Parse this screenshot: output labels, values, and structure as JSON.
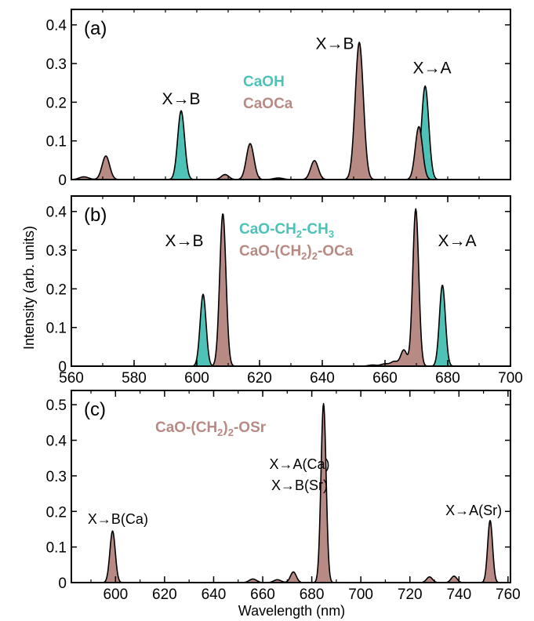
{
  "colors": {
    "teal": "#4ec2b6",
    "mauve": "#b88a84",
    "axis": "#000000"
  },
  "y_axis_label": "Intensity (arb. units)",
  "x_axis_label": "Wavelength (nm)",
  "chart_data": [
    {
      "type": "area",
      "panel_label": "(a)",
      "xlim": [
        560,
        700
      ],
      "ylim": [
        0,
        0.44
      ],
      "x_ticks": [],
      "y_ticks": [
        0,
        0.1,
        0.2,
        0.3,
        0.4
      ],
      "y_tick_labels": [
        "0",
        "0.1",
        "0.2",
        "0.3",
        "0.4"
      ],
      "legend": [
        {
          "text": "CaOH",
          "color": "teal"
        },
        {
          "text": "CaOCa",
          "color": "mauve"
        }
      ],
      "annotations": [
        {
          "text": "X→B",
          "x": 595,
          "y": 0.195
        },
        {
          "text": "X→B",
          "x": 644,
          "y": 0.338
        },
        {
          "text": "X→A",
          "x": 675,
          "y": 0.275
        }
      ],
      "series": [
        {
          "name": "CaOH",
          "color": "teal",
          "peaks": [
            [
              595,
              0.178,
              1.1
            ],
            [
              672.8,
              0.242,
              1.15
            ]
          ]
        },
        {
          "name": "CaOCa",
          "color": "mauve",
          "peaks": [
            [
              564,
              0.007,
              1.5
            ],
            [
              571,
              0.061,
              1.2
            ],
            [
              609,
              0.013,
              1.2
            ],
            [
              617,
              0.093,
              1.2
            ],
            [
              626,
              0.004,
              1.5
            ],
            [
              637.5,
              0.049,
              1.2
            ],
            [
              651.8,
              0.355,
              1.3
            ],
            [
              670.8,
              0.137,
              1.15
            ]
          ]
        }
      ]
    },
    {
      "type": "area",
      "panel_label": "(b)",
      "xlim": [
        560,
        700
      ],
      "ylim": [
        0,
        0.44
      ],
      "x_ticks": [
        560,
        580,
        600,
        620,
        640,
        660,
        680,
        700
      ],
      "x_tick_labels": [
        "560",
        "580",
        "600",
        "620",
        "640",
        "660",
        "680",
        "700"
      ],
      "y_ticks": [
        0,
        0.1,
        0.2,
        0.3,
        0.4
      ],
      "y_tick_labels": [
        "0",
        "0.1",
        "0.2",
        "0.3",
        "0.4"
      ],
      "legend": [
        {
          "text": "CaO-CH",
          "sub1": "2",
          "mid": "-CH",
          "sub2": "3",
          "tail": "",
          "color": "teal"
        },
        {
          "text": "CaO-(CH",
          "sub1": "2",
          "mid": ")",
          "sub2": "2",
          "tail": "-OCa",
          "color": "mauve"
        }
      ],
      "annotations": [
        {
          "text": "X→B",
          "x": 596,
          "y": 0.31
        },
        {
          "text": "X→A",
          "x": 683,
          "y": 0.31
        }
      ],
      "series": [
        {
          "name": "CaO-CH2-CH3",
          "color": "teal",
          "peaks": [
            [
              602,
              0.186,
              0.95
            ],
            [
              678.3,
              0.21,
              0.95
            ]
          ]
        },
        {
          "name": "CaO-(CH2)2-OCa",
          "color": "mauve",
          "peaks": [
            [
              608.3,
              0.395,
              1.0
            ],
            [
              656,
              0.003,
              1.3
            ],
            [
              660,
              0.006,
              1.3
            ],
            [
              663,
              0.012,
              1.1
            ],
            [
              666,
              0.042,
              1.0
            ],
            [
              669.8,
              0.407,
              0.95
            ]
          ]
        }
      ]
    },
    {
      "type": "area",
      "panel_label": "(c)",
      "xlim": [
        582,
        761
      ],
      "ylim": [
        0,
        0.54
      ],
      "x_ticks": [
        600,
        620,
        640,
        660,
        680,
        700,
        720,
        740,
        760
      ],
      "x_tick_labels": [
        "600",
        "620",
        "640",
        "660",
        "680",
        "700",
        "720",
        "740",
        "760"
      ],
      "y_ticks": [
        0,
        0.1,
        0.2,
        0.3,
        0.4,
        0.5
      ],
      "y_tick_labels": [
        "0",
        "0.1",
        "0.2",
        "0.3",
        "0.4",
        "0.5"
      ],
      "legend": [
        {
          "text": "CaO-(CH",
          "sub1": "2",
          "mid": ")",
          "sub2": "2",
          "tail": "-OSr",
          "color": "mauve"
        }
      ],
      "annotations": [
        {
          "text": "X→A(Ca)",
          "x": 675,
          "y": 0.32
        },
        {
          "text": "X→B(Sr)",
          "x": 675,
          "y": 0.26
        },
        {
          "text": "X→B(Ca)",
          "x": 601,
          "y": 0.165
        },
        {
          "text": "X→A(Sr)",
          "x": 746,
          "y": 0.19
        }
      ],
      "series": [
        {
          "name": "CaO-(CH2)2-OSr",
          "color": "mauve",
          "peaks": [
            [
              598.8,
              0.145,
              1.1
            ],
            [
              656,
              0.01,
              1.5
            ],
            [
              666,
              0.008,
              1.5
            ],
            [
              672.5,
              0.03,
              1.2
            ],
            [
              684.8,
              0.503,
              1.05
            ],
            [
              728,
              0.016,
              1.2
            ],
            [
              738,
              0.018,
              1.2
            ],
            [
              752.7,
              0.175,
              1.0
            ]
          ]
        }
      ]
    }
  ]
}
